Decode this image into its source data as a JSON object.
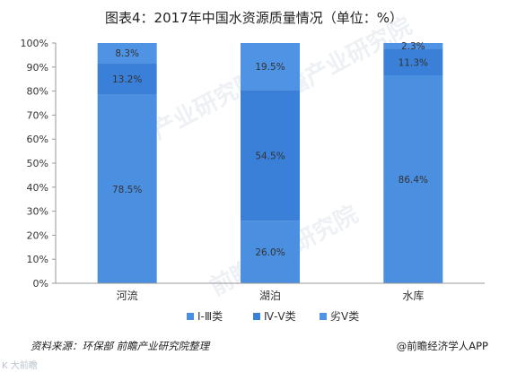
{
  "title": "图表4：2017年中国水资源质量情况（单位：%）",
  "source": "资料来源：环保部 前瞻产业研究院整理",
  "brand": "@前瞻经济学人APP",
  "watermark": "前瞻产业研究院",
  "corner_mark": "K 大前瞻",
  "colors": {
    "grade_1_3": "#4a8fe0",
    "grade_4_5": "#3a7fd8",
    "grade_worse_5": "#4e93e4",
    "axis": "#999999",
    "text": "#333333"
  },
  "chart_data": {
    "type": "bar",
    "stacked": true,
    "title": "图表4：2017年中国水资源质量情况（单位：%）",
    "xlabel": "",
    "ylabel": "",
    "categories": [
      "河流",
      "湖泊",
      "水库"
    ],
    "ylim": [
      0,
      100
    ],
    "yticks": [
      "0%",
      "10%",
      "20%",
      "30%",
      "40%",
      "50%",
      "60%",
      "70%",
      "80%",
      "90%",
      "100%"
    ],
    "series": [
      {
        "name": "Ⅰ-Ⅲ类",
        "values": [
          78.5,
          26.0,
          86.4
        ],
        "labels": [
          "78.5%",
          "26.0%",
          "86.4%"
        ]
      },
      {
        "name": "Ⅳ-Ⅴ类",
        "values": [
          13.2,
          54.5,
          11.3
        ],
        "labels": [
          "13.2%",
          "54.5%",
          "11.3%"
        ]
      },
      {
        "name": "劣Ⅴ类",
        "values": [
          8.3,
          19.5,
          2.3
        ],
        "labels": [
          "8.3%",
          "19.5%",
          "2.3%"
        ]
      }
    ],
    "legend_position": "bottom",
    "grid": false
  }
}
